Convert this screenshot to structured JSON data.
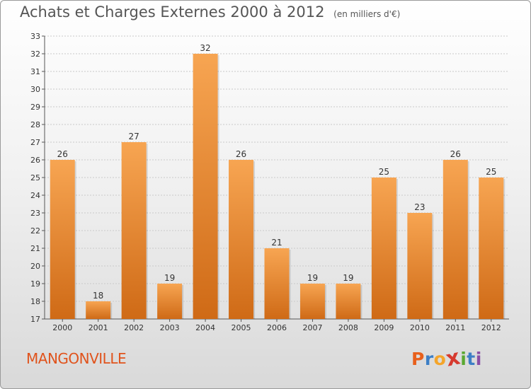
{
  "header": {
    "title": "Achats et Charges Externes 2000 à 2012",
    "subtitle": "(en milliers d'€)"
  },
  "footer": {
    "commune": "MANGONVILLE",
    "logo_letters": [
      "P",
      "r",
      "o",
      "x",
      "i",
      "t",
      "i"
    ],
    "logo_colors": [
      "#e8601c",
      "#3d7fc6",
      "#f4a52a",
      "#d63a2f",
      "#5aa832",
      "#3d7fc6",
      "#8a4fa6"
    ]
  },
  "colors": {
    "bar_top": "#f7a552",
    "bar_bottom": "#cf6a16",
    "grid": "#c9c9c9",
    "axis": "#555555",
    "commune": "#e0531c"
  },
  "chart_data": {
    "type": "bar",
    "categories": [
      "2000",
      "2001",
      "2002",
      "2003",
      "2004",
      "2005",
      "2006",
      "2007",
      "2008",
      "2009",
      "2010",
      "2011",
      "2012"
    ],
    "values": [
      26,
      18,
      27,
      19,
      32,
      26,
      21,
      19,
      19,
      25,
      23,
      26,
      25
    ],
    "title": "Achats et Charges Externes 2000 à 2012",
    "xlabel": "",
    "ylabel": "",
    "ylim": [
      17,
      33
    ],
    "yticks": [
      17,
      18,
      19,
      20,
      21,
      22,
      23,
      24,
      25,
      26,
      27,
      28,
      29,
      30,
      31,
      32,
      33
    ],
    "grid": true,
    "data_labels": true
  }
}
